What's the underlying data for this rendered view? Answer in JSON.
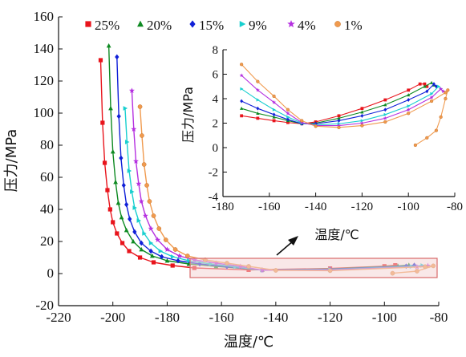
{
  "chart_data": [
    {
      "type": "line",
      "xlabel": "温度/℃",
      "ylabel": "压力/MPa",
      "xlim": [
        -220,
        -80
      ],
      "ylim": [
        -20,
        160
      ],
      "xticks": [
        "-220",
        "-200",
        "-180",
        "-160",
        "-140",
        "-120",
        "-100",
        "-80"
      ],
      "yticks": [
        "-20",
        "0",
        "20",
        "40",
        "60",
        "80",
        "100",
        "120",
        "140",
        "160"
      ],
      "legend_position": "top",
      "series": [
        {
          "name": "25%",
          "color": "#e8141c",
          "marker": "square",
          "x": [
            -204.5,
            -203.8,
            -203.0,
            -202.0,
            -201.0,
            -200.0,
            -198.5,
            -196.5,
            -194.0,
            -190.0,
            -185.0,
            -178.0,
            -170.0,
            -150.0,
            -120.0,
            -100.0,
            -96.0
          ],
          "y": [
            133,
            94,
            69,
            52,
            40,
            32,
            25,
            19,
            14,
            10,
            7,
            5,
            3.5,
            2.3,
            3.2,
            4.6,
            5.2
          ]
        },
        {
          "name": "20%",
          "color": "#0e8a22",
          "marker": "triangle",
          "x": [
            -201.5,
            -200.8,
            -200.0,
            -199.0,
            -198.0,
            -196.8,
            -195.0,
            -192.5,
            -189.5,
            -185.5,
            -180.0,
            -172.0,
            -162.0,
            -145.0,
            -120.0,
            -95.0,
            -91.0
          ],
          "y": [
            142,
            103,
            76,
            57,
            44,
            35,
            27,
            20,
            15,
            11,
            8,
            6,
            4.5,
            2.2,
            2.9,
            4.7,
            5.3
          ]
        },
        {
          "name": "15%",
          "color": "#1020d8",
          "marker": "diamond",
          "x": [
            -198.5,
            -197.8,
            -197.0,
            -196.0,
            -195.0,
            -193.8,
            -192.0,
            -189.5,
            -186.0,
            -182.0,
            -176.0,
            -168.0,
            -158.0,
            -145.0,
            -120.0,
            -92.0,
            -89.0
          ],
          "y": [
            135,
            98,
            72,
            55,
            43,
            34,
            26,
            19,
            14,
            10.5,
            8,
            6,
            4.3,
            2.2,
            2.7,
            4.6,
            5.2
          ]
        },
        {
          "name": "9%",
          "color": "#18cfcf",
          "marker": "right-triangle",
          "x": [
            -195.5,
            -194.8,
            -194.0,
            -193.0,
            -192.0,
            -190.5,
            -188.5,
            -186.0,
            -182.5,
            -178.0,
            -172.0,
            -164.0,
            -155.0,
            -145.0,
            -120.0,
            -90.0,
            -86.0
          ],
          "y": [
            103,
            82,
            64,
            51,
            41,
            33,
            25,
            19,
            14,
            10.5,
            8,
            6,
            4.2,
            2.1,
            2.4,
            4.4,
            5.0
          ]
        },
        {
          "name": "4%",
          "color": "#b530e0",
          "marker": "star",
          "x": [
            -193.0,
            -192.3,
            -191.5,
            -190.5,
            -189.5,
            -188.0,
            -186.0,
            -183.5,
            -180.0,
            -175.5,
            -170.0,
            -162.0,
            -153.0,
            -145.0,
            -120.0,
            -88.0,
            -84.0
          ],
          "y": [
            114,
            90,
            70,
            56,
            45,
            36,
            28,
            21,
            15,
            11,
            8.5,
            6.5,
            4.5,
            2.1,
            2.2,
            4.2,
            4.9
          ]
        },
        {
          "name": "1%",
          "color": "#f09a4e",
          "marker": "circle",
          "x": [
            -190.0,
            -189.3,
            -188.5,
            -187.5,
            -186.5,
            -185.0,
            -183.0,
            -180.5,
            -177.0,
            -172.5,
            -166.0,
            -158.0,
            -150.0,
            -140.0,
            -120.0,
            -85.0,
            -82.0,
            -88.0,
            -97.0
          ],
          "y": [
            104,
            86,
            68,
            55,
            45,
            36,
            28,
            21,
            15,
            11,
            8.5,
            6.5,
            4.5,
            2.0,
            1.8,
            4.3,
            4.8,
            1.5,
            0.2
          ]
        }
      ]
    },
    {
      "type": "line",
      "xlabel": "温度/℃",
      "ylabel": "压力/MPa",
      "xlim": [
        -180,
        -80
      ],
      "ylim": [
        -4,
        8
      ],
      "xticks": [
        "-180",
        "-160",
        "-140",
        "-120",
        "-100",
        "-80"
      ],
      "yticks": [
        "-4",
        "-2",
        "0",
        "2",
        "4",
        "6",
        "8"
      ],
      "series": [
        {
          "name": "25%",
          "x": [
            -172,
            -165,
            -158,
            -152,
            -146,
            -140,
            -130,
            -120,
            -110,
            -100,
            -95,
            -93,
            -92
          ],
          "y": [
            2.6,
            2.4,
            2.2,
            2.05,
            1.95,
            2.1,
            2.6,
            3.2,
            3.9,
            4.7,
            5.2,
            5.2,
            5.0
          ]
        },
        {
          "name": "20%",
          "x": [
            -172,
            -165,
            -158,
            -152,
            -146,
            -140,
            -130,
            -120,
            -110,
            -100,
            -93,
            -90,
            -89
          ],
          "y": [
            3.2,
            2.8,
            2.5,
            2.2,
            1.95,
            2.0,
            2.4,
            2.9,
            3.5,
            4.3,
            5.0,
            5.3,
            5.1
          ]
        },
        {
          "name": "15%",
          "x": [
            -172,
            -165,
            -158,
            -152,
            -146,
            -140,
            -130,
            -120,
            -110,
            -100,
            -92,
            -89,
            -88
          ],
          "y": [
            3.8,
            3.2,
            2.7,
            2.3,
            1.95,
            1.95,
            2.2,
            2.6,
            3.1,
            3.9,
            4.6,
            5.2,
            5.0
          ]
        },
        {
          "name": "9%",
          "x": [
            -172,
            -165,
            -158,
            -152,
            -146,
            -140,
            -130,
            -120,
            -110,
            -100,
            -90,
            -87,
            -86
          ],
          "y": [
            4.8,
            3.9,
            3.1,
            2.5,
            2.0,
            1.85,
            1.95,
            2.2,
            2.7,
            3.4,
            4.4,
            5.0,
            4.8
          ]
        },
        {
          "name": "4%",
          "x": [
            -172,
            -165,
            -158,
            -152,
            -146,
            -140,
            -130,
            -120,
            -110,
            -100,
            -90,
            -86,
            -85
          ],
          "y": [
            5.9,
            4.7,
            3.7,
            2.8,
            2.05,
            1.8,
            1.8,
            2.0,
            2.4,
            3.1,
            4.1,
            4.8,
            4.6
          ]
        },
        {
          "name": "1%",
          "x": [
            -172,
            -165,
            -158,
            -152,
            -146,
            -140,
            -130,
            -120,
            -110,
            -100,
            -90,
            -84,
            -83,
            -84,
            -86,
            -88,
            -92,
            -97
          ],
          "y": [
            6.8,
            5.4,
            4.2,
            3.1,
            2.2,
            1.75,
            1.65,
            1.8,
            2.1,
            2.8,
            3.8,
            4.5,
            4.7,
            4.0,
            2.5,
            1.4,
            0.8,
            0.2
          ]
        }
      ]
    }
  ]
}
